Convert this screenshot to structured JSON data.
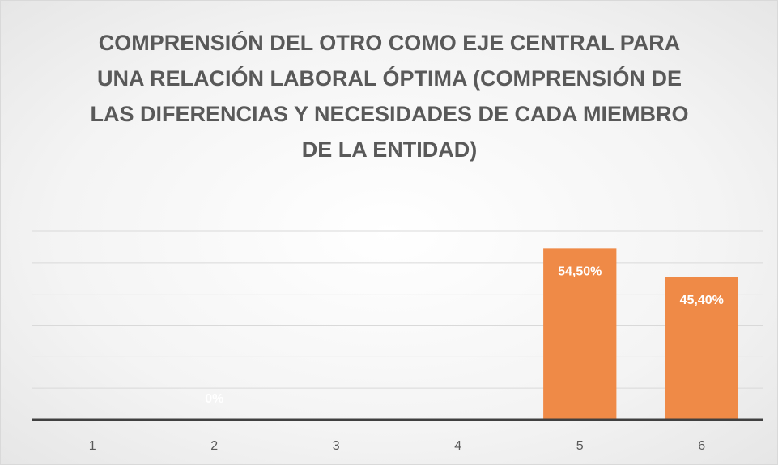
{
  "chart_data": {
    "type": "bar",
    "title": "COMPRENSIÓN DEL OTRO COMO EJE CENTRAL PARA UNA RELACIÓN LABORAL ÓPTIMA (COMPRENSIÓN DE LAS DIFERENCIAS Y NECESIDADES DE CADA MIEMBRO DE LA ENTIDAD)",
    "categories": [
      "1",
      "2",
      "3",
      "4",
      "5",
      "6"
    ],
    "values": [
      0,
      0,
      0,
      0,
      54.5,
      45.4
    ],
    "value_labels": [
      null,
      "0%",
      null,
      null,
      "54,50%",
      "45,40%"
    ],
    "color": "#ef8a47",
    "ylim": [
      0,
      60
    ],
    "yticks": [
      0,
      10,
      20,
      30,
      40,
      50,
      60
    ],
    "grid": true
  }
}
